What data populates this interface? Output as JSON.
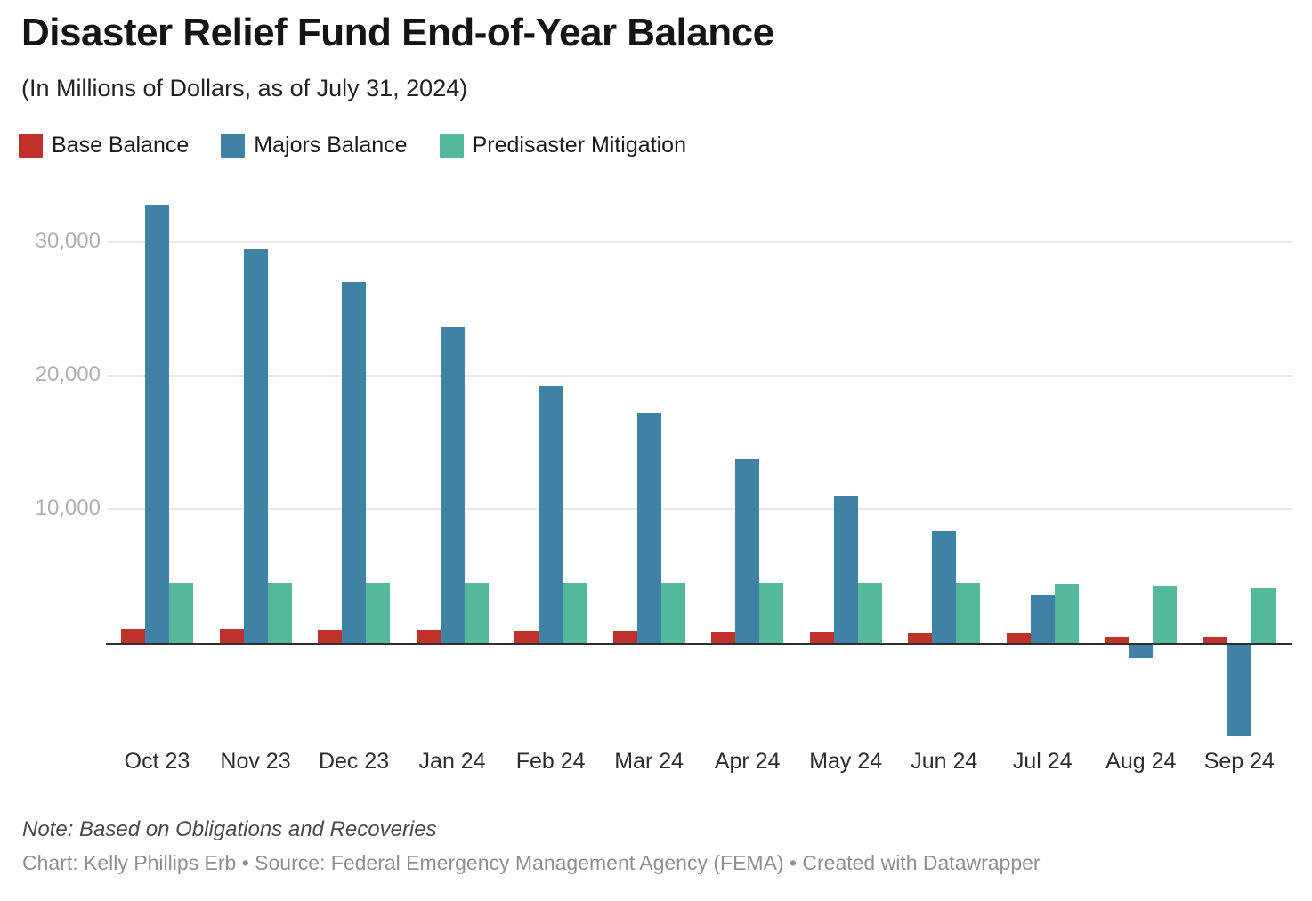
{
  "header": {
    "title": "Disaster Relief Fund End-of-Year Balance",
    "subtitle": "(In Millions of Dollars, as of July 31, 2024)"
  },
  "chart_data": {
    "type": "bar",
    "title": "Disaster Relief Fund End-of-Year Balance",
    "subtitle": "(In Millions of Dollars, as of July 31, 2024)",
    "categories": [
      "Oct 23",
      "Nov 23",
      "Dec 23",
      "Jan 24",
      "Feb 24",
      "Mar 24",
      "Apr 24",
      "May 24",
      "Jun 24",
      "Jul 24",
      "Aug 24",
      "Sep 24"
    ],
    "series": [
      {
        "name": "Base Balance",
        "color": "#bf322b",
        "values": [
          1050,
          1000,
          950,
          950,
          900,
          850,
          800,
          800,
          750,
          750,
          500,
          400
        ]
      },
      {
        "name": "Majors Balance",
        "color": "#4082a6",
        "values": [
          32800,
          29500,
          27000,
          23700,
          19300,
          17200,
          13800,
          11000,
          8400,
          3600,
          -1100,
          -7000
        ]
      },
      {
        "name": "Predisaster Mitigation",
        "color": "#54b99c",
        "values": [
          4500,
          4500,
          4450,
          4450,
          4500,
          4500,
          4500,
          4450,
          4450,
          4400,
          4300,
          4100
        ]
      }
    ],
    "xlabel": "",
    "ylabel": "",
    "ylim": [
      -8000,
      33400
    ],
    "yticks": [
      10000,
      20000,
      30000
    ],
    "ytick_labels": [
      "10,000",
      "20,000",
      "30,000"
    ],
    "grid": "horizontal",
    "legend_position": "top",
    "gridline_color": "#e8e8e8",
    "axis_color": "#2f2f2f"
  },
  "footer": {
    "note": "Note: Based on Obligations and Recoveries",
    "credit": "Chart: Kelly Phillips Erb • Source: Federal Emergency Management Agency (FEMA)  • Created with Datawrapper"
  }
}
